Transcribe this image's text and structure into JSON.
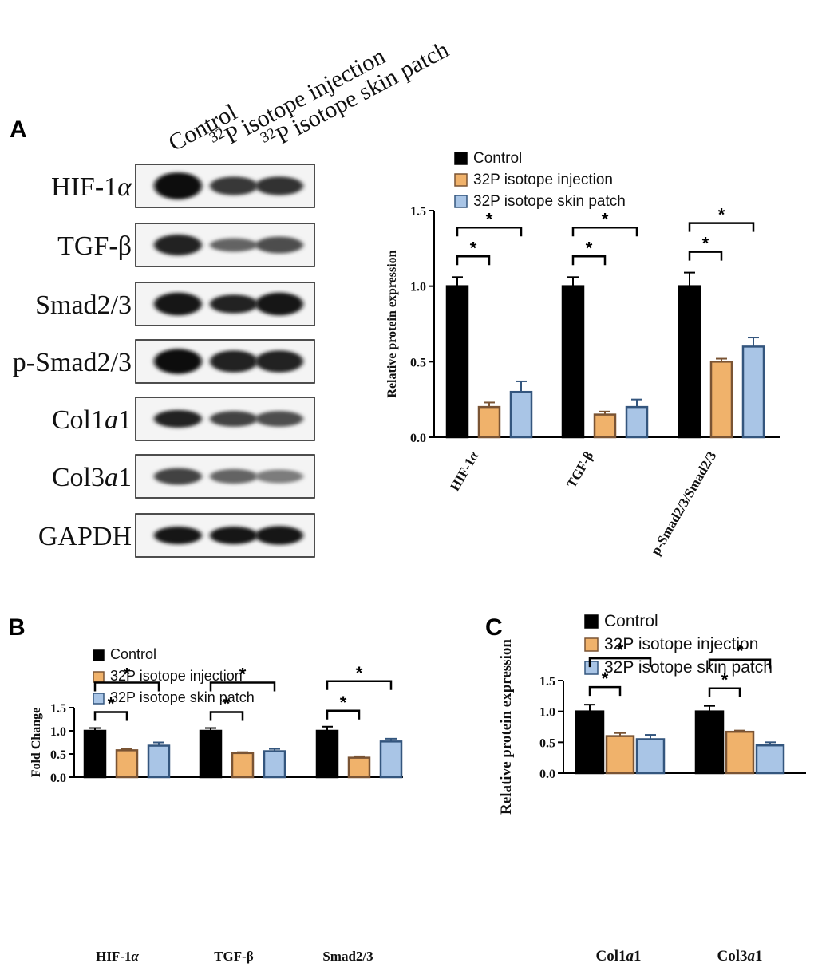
{
  "panels": {
    "a": "A",
    "b": "B",
    "c": "C"
  },
  "blot": {
    "lanes": [
      {
        "sup": "",
        "text": "Control"
      },
      {
        "sup": "32",
        "text": "P isotope injection"
      },
      {
        "sup": "32",
        "text": "P isotope skin patch"
      }
    ],
    "rows": [
      {
        "pre": "HIF-1",
        "ital": "α",
        "post": "",
        "intensity": [
          1.0,
          0.8,
          0.82
        ],
        "thickness": [
          1.0,
          0.6,
          0.6
        ]
      },
      {
        "pre": "TGF-β",
        "ital": "",
        "post": "",
        "intensity": [
          0.9,
          0.6,
          0.7
        ],
        "thickness": [
          0.7,
          0.35,
          0.5
        ]
      },
      {
        "pre": "Smad2/3",
        "ital": "",
        "post": "",
        "intensity": [
          0.95,
          0.9,
          0.95
        ],
        "thickness": [
          0.8,
          0.6,
          0.8
        ]
      },
      {
        "pre": "p-Smad2/3",
        "ital": "",
        "post": "",
        "intensity": [
          1.0,
          0.9,
          0.9
        ],
        "thickness": [
          0.9,
          0.75,
          0.75
        ]
      },
      {
        "pre": "Col1",
        "ital": "a",
        "post": "1",
        "intensity": [
          0.9,
          0.75,
          0.7
        ],
        "thickness": [
          0.55,
          0.45,
          0.45
        ]
      },
      {
        "pre": "Col3",
        "ital": "a",
        "post": "1",
        "intensity": [
          0.75,
          0.6,
          0.5
        ],
        "thickness": [
          0.5,
          0.4,
          0.35
        ]
      },
      {
        "pre": "GAPDH",
        "ital": "",
        "post": "",
        "intensity": [
          0.95,
          0.95,
          0.95
        ],
        "thickness": [
          0.55,
          0.55,
          0.6
        ]
      }
    ]
  },
  "series_colors": {
    "Control": "#000000",
    "32P isotope injection": "#f0b26b",
    "32P isotope skin patch": "#a9c5e6"
  },
  "series_edges": {
    "Control": "#000000",
    "32P isotope injection": "#7a5434",
    "32P isotope skin patch": "#34567e"
  },
  "chart_data": [
    {
      "id": "A",
      "type": "bar",
      "categories": [
        {
          "pre": "HIF-1",
          "ital": "α",
          "post": ""
        },
        {
          "pre": "TGF-β",
          "ital": "",
          "post": ""
        },
        {
          "pre": "p-Smad2/3/Smad2/3",
          "ital": "",
          "post": ""
        }
      ],
      "series": [
        {
          "name": "Control",
          "values": [
            1.0,
            1.0,
            1.0
          ],
          "errors": [
            0.06,
            0.06,
            0.09
          ]
        },
        {
          "name": "32P isotope injection",
          "values": [
            0.2,
            0.15,
            0.5
          ],
          "errors": [
            0.03,
            0.02,
            0.02
          ]
        },
        {
          "name": "32P isotope skin patch",
          "values": [
            0.3,
            0.2,
            0.6
          ],
          "errors": [
            0.07,
            0.05,
            0.06
          ]
        }
      ],
      "ylabel": "Relative protein expression",
      "ylim": [
        0,
        1.5
      ],
      "yticks": [
        "0.0",
        "0.5",
        "1.0",
        "1.5"
      ],
      "significance": "*",
      "legend": "top-left"
    },
    {
      "id": "B",
      "type": "bar",
      "categories": [
        {
          "pre": "HIF-1",
          "ital": "α",
          "post": ""
        },
        {
          "pre": "TGF-β",
          "ital": "",
          "post": ""
        },
        {
          "pre": "Smad2/3",
          "ital": "",
          "post": ""
        }
      ],
      "series": [
        {
          "name": "Control",
          "values": [
            1.0,
            1.0,
            1.0
          ],
          "errors": [
            0.06,
            0.06,
            0.09
          ]
        },
        {
          "name": "32P isotope injection",
          "values": [
            0.58,
            0.52,
            0.42
          ],
          "errors": [
            0.03,
            0.02,
            0.03
          ]
        },
        {
          "name": "32P isotope skin patch",
          "values": [
            0.68,
            0.56,
            0.77
          ],
          "errors": [
            0.07,
            0.05,
            0.06
          ]
        }
      ],
      "ylabel": "Fold Change",
      "ylim": [
        0,
        1.5
      ],
      "yticks": [
        "0.0",
        "0.5",
        "1.0",
        "1.5"
      ],
      "significance": "*",
      "legend": "top-left"
    },
    {
      "id": "C",
      "type": "bar",
      "categories": [
        {
          "pre": "Col1",
          "ital": "a",
          "post": "1"
        },
        {
          "pre": "Col3",
          "ital": "a",
          "post": "1"
        }
      ],
      "series": [
        {
          "name": "Control",
          "values": [
            1.0,
            1.0
          ],
          "errors": [
            0.11,
            0.09
          ]
        },
        {
          "name": "32P isotope injection",
          "values": [
            0.6,
            0.67
          ],
          "errors": [
            0.05,
            0.02
          ]
        },
        {
          "name": "32P isotope skin patch",
          "values": [
            0.55,
            0.45
          ],
          "errors": [
            0.07,
            0.05
          ]
        }
      ],
      "ylabel": "Relative protein expression",
      "ylim": [
        0,
        1.5
      ],
      "yticks": [
        "0.0",
        "0.5",
        "1.0",
        "1.5"
      ],
      "significance": "*",
      "legend": "top-left"
    }
  ]
}
